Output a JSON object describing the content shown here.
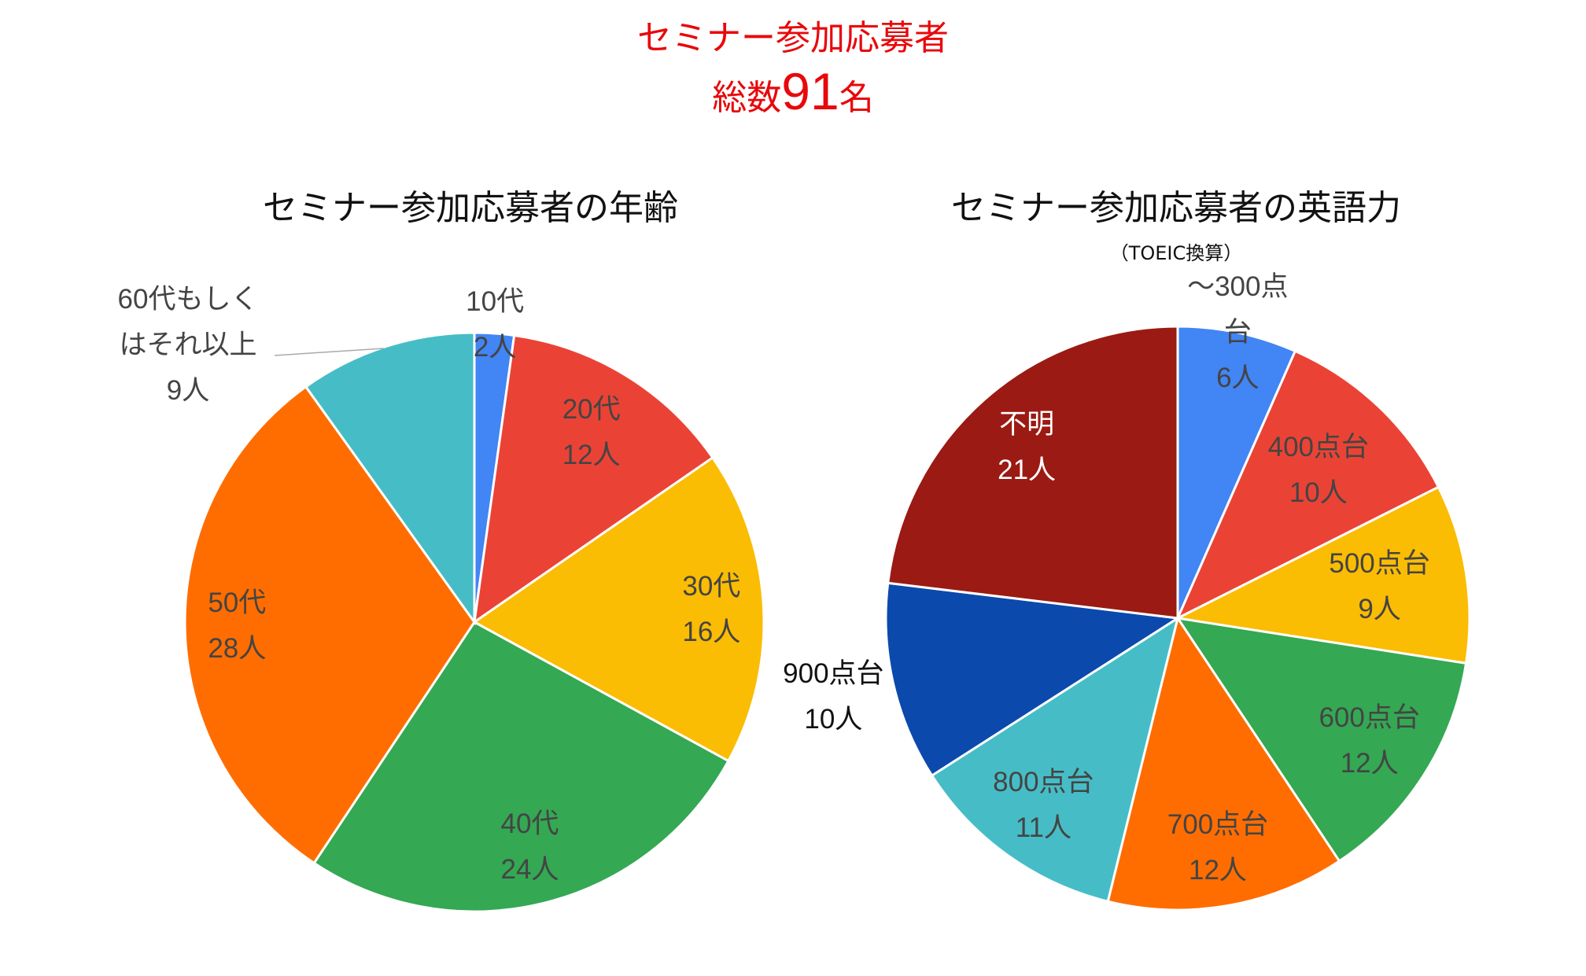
{
  "header": {
    "title": "セミナー参加応募者",
    "total_prefix": "総数",
    "total": 91,
    "total_suffix": "名"
  },
  "chart_data": [
    {
      "type": "pie",
      "title": "セミナー参加応募者の年齢",
      "categories": [
        "10代",
        "20代",
        "30代",
        "40代",
        "50代",
        "60代もしくはそれ以上"
      ],
      "values": [
        2,
        12,
        16,
        24,
        28,
        9
      ],
      "value_labels": [
        "2人",
        "12人",
        "16人",
        "24人",
        "28人",
        "9人"
      ],
      "colors": [
        "#4285f4",
        "#ea4335",
        "#fbbc04",
        "#34a853",
        "#ff6d01",
        "#46bdc6"
      ]
    },
    {
      "type": "pie",
      "title": "セミナー参加応募者の英語力",
      "subtitle": "（TOEIC換算）",
      "categories": [
        "～300点台",
        "400点台",
        "500点台",
        "600点台",
        "700点台",
        "800点台",
        "900点台",
        "不明"
      ],
      "values": [
        6,
        10,
        9,
        12,
        12,
        11,
        10,
        21
      ],
      "value_labels": [
        "6人",
        "10人",
        "9人",
        "12人",
        "12人",
        "11人",
        "10人",
        "21人"
      ],
      "colors": [
        "#4285f4",
        "#ea4335",
        "#fbbc04",
        "#34a853",
        "#ff6d01",
        "#46bdc6",
        "#0b49ad",
        "#9b1a13"
      ]
    }
  ]
}
